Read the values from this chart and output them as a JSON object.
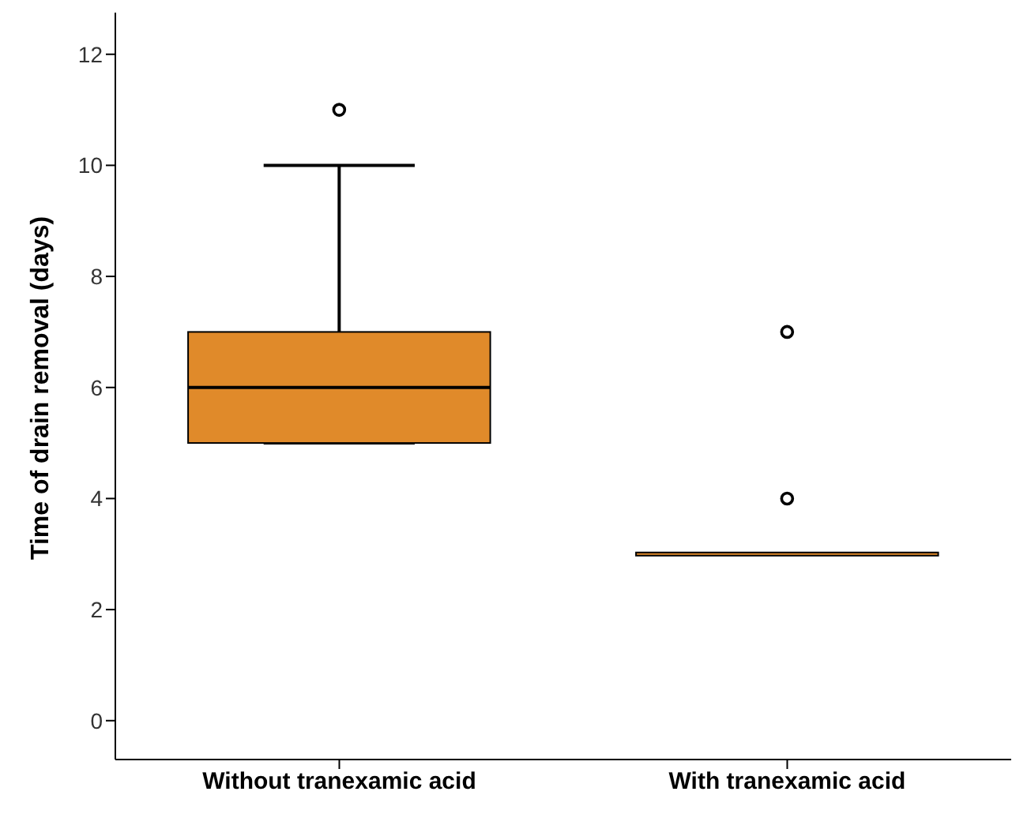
{
  "chart_data": {
    "type": "box",
    "ylabel": "Time of drain removal (days)",
    "categories": [
      "Without tranexamic acid",
      "With tranexamic acid"
    ],
    "boxes": [
      {
        "low": 5,
        "q1": 5,
        "median": 6,
        "q3": 7,
        "high": 10,
        "outliers": [
          11
        ]
      },
      {
        "low": 3,
        "q1": 3,
        "median": 3,
        "q3": 3,
        "high": 3,
        "outliers": [
          4,
          7
        ]
      }
    ],
    "color": "#e08a2a",
    "ylim": [
      -0.7,
      12.75
    ],
    "yticks": [
      0,
      2,
      4,
      6,
      8,
      10,
      12
    ],
    "grid": false
  }
}
